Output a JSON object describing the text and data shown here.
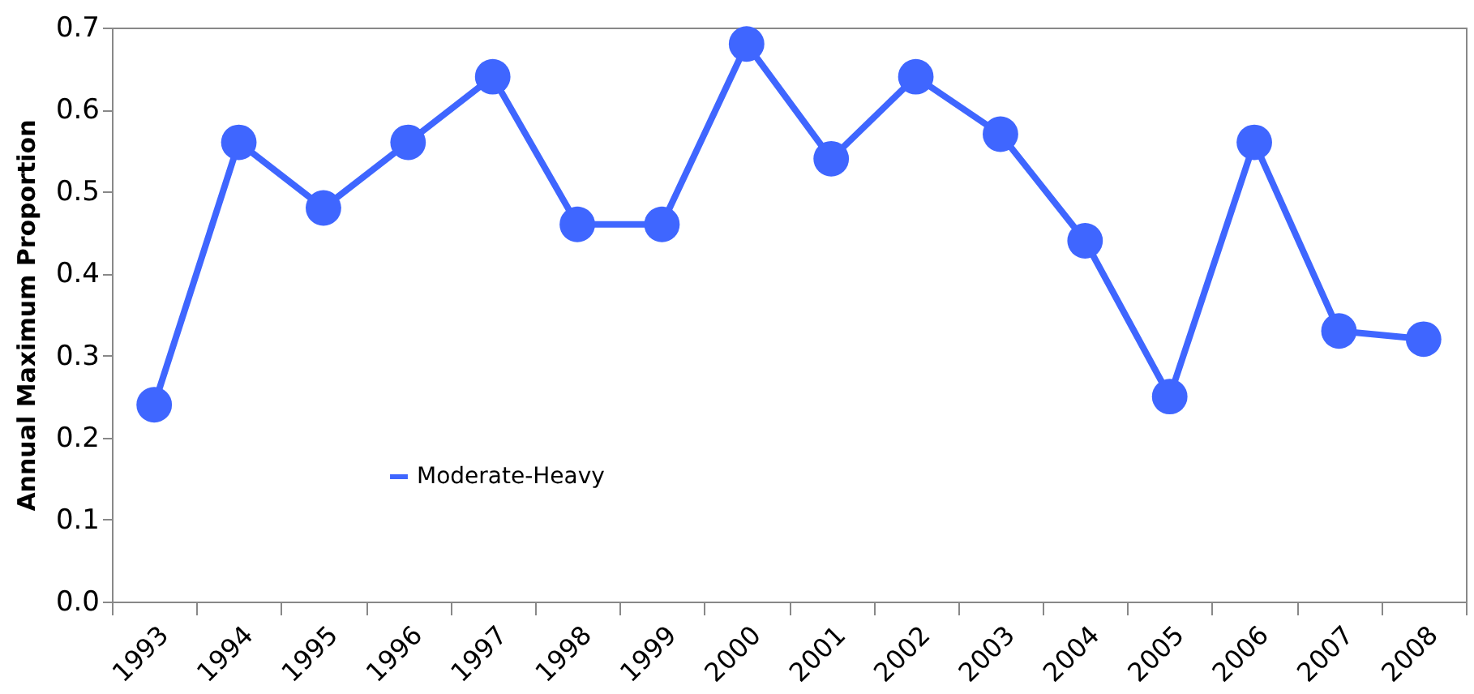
{
  "chart_data": {
    "type": "line",
    "ylabel": "Annual Maximum Proportion",
    "categories": [
      "1993",
      "1994",
      "1995",
      "1996",
      "1997",
      "1998",
      "1999",
      "2000",
      "2001",
      "2002",
      "2003",
      "2004",
      "2005",
      "2006",
      "2007",
      "2008"
    ],
    "series": [
      {
        "name": "Moderate-Heavy",
        "color": "#3f66ff",
        "values": [
          0.24,
          0.56,
          0.48,
          0.56,
          0.64,
          0.46,
          0.46,
          0.68,
          0.54,
          0.64,
          0.57,
          0.44,
          0.25,
          0.56,
          0.33,
          0.32
        ]
      }
    ],
    "ylim": [
      0,
      0.7
    ],
    "yticks": [
      {
        "value": 0,
        "label": "0.0"
      },
      {
        "value": 0.1,
        "label": "0.1"
      },
      {
        "value": 0.2,
        "label": "0.2"
      },
      {
        "value": 0.3,
        "label": "0.3"
      },
      {
        "value": 0.4,
        "label": "0.4"
      },
      {
        "value": 0.5,
        "label": "0.5"
      },
      {
        "value": 0.6,
        "label": "0.6"
      },
      {
        "value": 0.7,
        "label": "0.7"
      }
    ],
    "grid": false,
    "legend": "bottom left",
    "marker": "circle",
    "line_style": "solid"
  }
}
